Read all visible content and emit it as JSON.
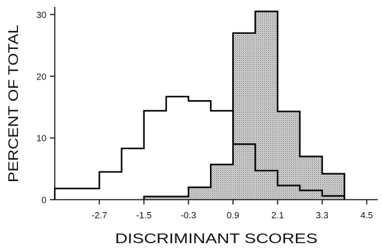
{
  "chart_data": {
    "type": "histogram",
    "xlabel": "DISCRIMINANT SCORES",
    "ylabel": "PERCENT OF TOTAL",
    "x_ticks": [
      "-2.7",
      "-1.5",
      "-0.3",
      "0.9",
      "2.1",
      "3.3",
      "4.5"
    ],
    "y_ticks": [
      "0",
      "10",
      "20",
      "30"
    ],
    "bin_width": 0.6,
    "xlim": [
      -3.9,
      4.8
    ],
    "ylim": [
      0,
      32
    ],
    "series": [
      {
        "style": "open",
        "bins": [
          {
            "x0": -3.9,
            "x1": -3.3,
            "y": 1.8
          },
          {
            "x0": -3.3,
            "x1": -2.7,
            "y": 1.8
          },
          {
            "x0": -2.7,
            "x1": -2.1,
            "y": 4.5
          },
          {
            "x0": -2.1,
            "x1": -1.5,
            "y": 8.3
          },
          {
            "x0": -1.5,
            "x1": -0.9,
            "y": 14.4
          },
          {
            "x0": -0.9,
            "x1": -0.3,
            "y": 16.7
          },
          {
            "x0": -0.3,
            "x1": 0.3,
            "y": 16.0
          },
          {
            "x0": 0.3,
            "x1": 0.9,
            "y": 14.4
          },
          {
            "x0": 0.9,
            "x1": 1.5,
            "y": 9.0
          },
          {
            "x0": 1.5,
            "x1": 2.1,
            "y": 4.7
          },
          {
            "x0": 2.1,
            "x1": 2.7,
            "y": 2.3
          },
          {
            "x0": 2.7,
            "x1": 3.3,
            "y": 1.5
          },
          {
            "x0": 3.3,
            "x1": 3.9,
            "y": 0.6
          }
        ]
      },
      {
        "style": "shaded",
        "bins": [
          {
            "x0": -1.5,
            "x1": -0.9,
            "y": 0.5
          },
          {
            "x0": -0.9,
            "x1": -0.3,
            "y": 0.5
          },
          {
            "x0": -0.3,
            "x1": 0.3,
            "y": 2.0
          },
          {
            "x0": 0.3,
            "x1": 0.9,
            "y": 5.7
          },
          {
            "x0": 0.9,
            "x1": 1.5,
            "y": 27.0
          },
          {
            "x0": 1.5,
            "x1": 2.1,
            "y": 30.5
          },
          {
            "x0": 2.1,
            "x1": 2.7,
            "y": 14.3
          },
          {
            "x0": 2.7,
            "x1": 3.3,
            "y": 7.0
          },
          {
            "x0": 3.3,
            "x1": 3.9,
            "y": 4.2
          }
        ]
      }
    ],
    "grid": false,
    "legend": "none"
  }
}
